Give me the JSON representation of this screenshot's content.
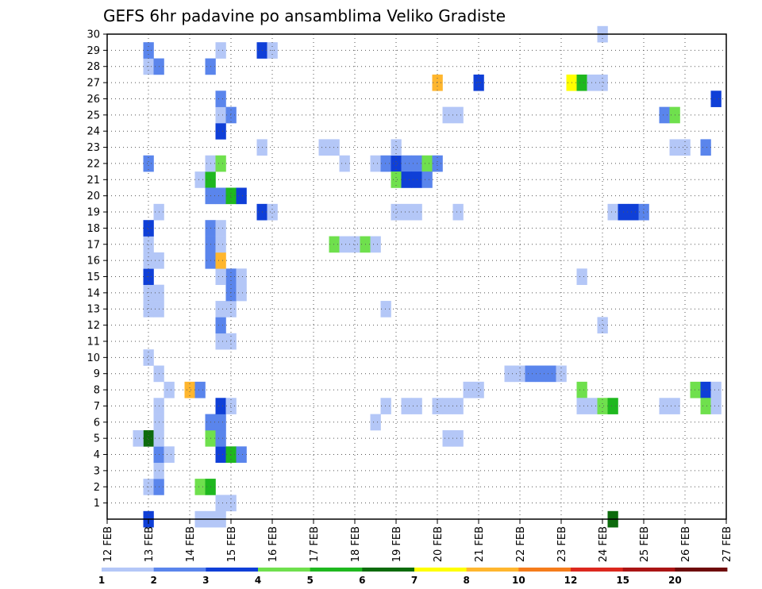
{
  "chart_data": {
    "type": "heatmap",
    "title": "GEFS 6hr padavine po ansamblima Veliko Gradiste",
    "xlabel": "",
    "ylabel": "",
    "x_ticks": [
      "12 FEB",
      "13 FEB",
      "14 FEB",
      "15 FEB",
      "16 FEB",
      "17 FEB",
      "18 FEB",
      "19 FEB",
      "20 FEB",
      "21 FEB",
      "22 FEB",
      "23 FEB",
      "24 FEB",
      "25 FEB",
      "26 FEB",
      "27 FEB"
    ],
    "y_ticks": [
      "1",
      "2",
      "3",
      "4",
      "5",
      "6",
      "7",
      "8",
      "9",
      "10",
      "11",
      "12",
      "13",
      "14",
      "15",
      "16",
      "17",
      "18",
      "19",
      "20",
      "21",
      "22",
      "23",
      "24",
      "25",
      "26",
      "27",
      "28",
      "29",
      "30"
    ],
    "xlim": [
      12,
      27
    ],
    "ylim": [
      0,
      30
    ],
    "step_days": 0.25,
    "grid": true,
    "colorbar": {
      "labels": [
        "1",
        "2",
        "3",
        "4",
        "5",
        "6",
        "7",
        "8",
        "10",
        "12",
        "15",
        "20"
      ],
      "colors": [
        "#b4c7f7",
        "#5a85ec",
        "#0f3fd7",
        "#6fe04d",
        "#1fb81f",
        "#0d6b0d",
        "#ffff00",
        "#ffb62e",
        "#f57c1b",
        "#dc281e",
        "#aa1414",
        "#6e0b0b"
      ]
    },
    "cells": [
      [
        13.0,
        0,
        3
      ],
      [
        13.0,
        2,
        1
      ],
      [
        13.0,
        5,
        6
      ],
      [
        13.0,
        10,
        1
      ],
      [
        13.0,
        13,
        1
      ],
      [
        13.0,
        14,
        1
      ],
      [
        13.0,
        15,
        3
      ],
      [
        13.0,
        16,
        1
      ],
      [
        13.0,
        17,
        1
      ],
      [
        13.0,
        18,
        3
      ],
      [
        13.0,
        22,
        2
      ],
      [
        13.0,
        28,
        1
      ],
      [
        13.0,
        29,
        2
      ],
      [
        12.75,
        5,
        1
      ],
      [
        13.25,
        2,
        2
      ],
      [
        13.25,
        3,
        1
      ],
      [
        13.25,
        4,
        2
      ],
      [
        13.25,
        5,
        1
      ],
      [
        13.25,
        6,
        1
      ],
      [
        13.25,
        7,
        1
      ],
      [
        13.25,
        9,
        1
      ],
      [
        13.25,
        13,
        1
      ],
      [
        13.25,
        14,
        1
      ],
      [
        13.25,
        16,
        1
      ],
      [
        13.25,
        19,
        1
      ],
      [
        13.25,
        28,
        2
      ],
      [
        13.5,
        4,
        1
      ],
      [
        13.5,
        8,
        1
      ],
      [
        14.0,
        8,
        8
      ],
      [
        14.25,
        8,
        2
      ],
      [
        14.25,
        2,
        4
      ],
      [
        14.5,
        2,
        5
      ],
      [
        14.25,
        21,
        1
      ],
      [
        14.5,
        21,
        5
      ],
      [
        14.5,
        5,
        4
      ],
      [
        14.5,
        6,
        2
      ],
      [
        14.5,
        16,
        2
      ],
      [
        14.5,
        17,
        2
      ],
      [
        14.5,
        18,
        2
      ],
      [
        14.5,
        20,
        2
      ],
      [
        14.5,
        22,
        1
      ],
      [
        14.5,
        28,
        2
      ],
      [
        14.25,
        0,
        1
      ],
      [
        14.5,
        0,
        1
      ],
      [
        14.75,
        0,
        1
      ],
      [
        14.75,
        1,
        1
      ],
      [
        15.0,
        1,
        1
      ],
      [
        14.75,
        4,
        3
      ],
      [
        15.0,
        4,
        5
      ],
      [
        15.25,
        4,
        2
      ],
      [
        14.75,
        5,
        2
      ],
      [
        14.75,
        6,
        2
      ],
      [
        14.75,
        7,
        3
      ],
      [
        15.0,
        7,
        1
      ],
      [
        14.75,
        11,
        1
      ],
      [
        15.0,
        11,
        1
      ],
      [
        14.75,
        12,
        2
      ],
      [
        14.75,
        13,
        1
      ],
      [
        15.0,
        13,
        1
      ],
      [
        15.0,
        14,
        2
      ],
      [
        15.25,
        14,
        1
      ],
      [
        15.0,
        15,
        2
      ],
      [
        15.25,
        15,
        1
      ],
      [
        14.75,
        15,
        1
      ],
      [
        14.75,
        16,
        8
      ],
      [
        14.75,
        17,
        1
      ],
      [
        14.75,
        18,
        1
      ],
      [
        14.75,
        20,
        2
      ],
      [
        15.0,
        20,
        5
      ],
      [
        15.25,
        20,
        3
      ],
      [
        14.75,
        22,
        4
      ],
      [
        14.75,
        24,
        3
      ],
      [
        14.75,
        25,
        1
      ],
      [
        15.0,
        25,
        2
      ],
      [
        14.75,
        26,
        2
      ],
      [
        14.75,
        29,
        1
      ],
      [
        15.75,
        19,
        3
      ],
      [
        16.0,
        19,
        1
      ],
      [
        15.75,
        23,
        1
      ],
      [
        15.75,
        29,
        3
      ],
      [
        16.0,
        29,
        1
      ],
      [
        17.25,
        23,
        1
      ],
      [
        17.5,
        23,
        1
      ],
      [
        17.75,
        22,
        1
      ],
      [
        17.5,
        17,
        4
      ],
      [
        17.75,
        17,
        1
      ],
      [
        18.0,
        17,
        1
      ],
      [
        18.25,
        17,
        4
      ],
      [
        18.5,
        17,
        1
      ],
      [
        18.5,
        22,
        1
      ],
      [
        18.75,
        22,
        2
      ],
      [
        19.0,
        22,
        3
      ],
      [
        19.25,
        22,
        2
      ],
      [
        19.5,
        22,
        2
      ],
      [
        19.75,
        22,
        4
      ],
      [
        20.0,
        22,
        2
      ],
      [
        19.0,
        21,
        4
      ],
      [
        19.25,
        21,
        3
      ],
      [
        19.5,
        21,
        3
      ],
      [
        19.75,
        21,
        2
      ],
      [
        19.0,
        23,
        1
      ],
      [
        19.0,
        19,
        1
      ],
      [
        19.25,
        19,
        1
      ],
      [
        19.5,
        19,
        1
      ],
      [
        18.75,
        13,
        1
      ],
      [
        18.75,
        7,
        1
      ],
      [
        18.5,
        6,
        1
      ],
      [
        19.25,
        7,
        1
      ],
      [
        19.5,
        7,
        1
      ],
      [
        20.0,
        7,
        1
      ],
      [
        20.25,
        7,
        1
      ],
      [
        20.5,
        7,
        1
      ],
      [
        20.75,
        8,
        1
      ],
      [
        21.0,
        8,
        1
      ],
      [
        20.25,
        5,
        1
      ],
      [
        20.5,
        5,
        1
      ],
      [
        20.25,
        25,
        1
      ],
      [
        20.5,
        25,
        1
      ],
      [
        20.5,
        19,
        1
      ],
      [
        20.0,
        27,
        8
      ],
      [
        21.0,
        27,
        3
      ],
      [
        21.75,
        9,
        1
      ],
      [
        22.0,
        9,
        1
      ],
      [
        22.25,
        9,
        2
      ],
      [
        22.5,
        9,
        2
      ],
      [
        22.75,
        9,
        2
      ],
      [
        23.0,
        9,
        1
      ],
      [
        23.25,
        27,
        7
      ],
      [
        23.5,
        27,
        5
      ],
      [
        23.75,
        27,
        1
      ],
      [
        24.0,
        27,
        1
      ],
      [
        23.5,
        8,
        4
      ],
      [
        23.5,
        7,
        1
      ],
      [
        23.75,
        7,
        1
      ],
      [
        24.0,
        7,
        4
      ],
      [
        24.25,
        7,
        5
      ],
      [
        23.5,
        15,
        1
      ],
      [
        24.0,
        12,
        1
      ],
      [
        24.0,
        30,
        1
      ],
      [
        24.25,
        19,
        1
      ],
      [
        24.5,
        19,
        3
      ],
      [
        24.75,
        19,
        3
      ],
      [
        25.0,
        19,
        2
      ],
      [
        24.25,
        0,
        6
      ],
      [
        25.5,
        25,
        2
      ],
      [
        25.75,
        25,
        4
      ],
      [
        25.75,
        23,
        1
      ],
      [
        26.0,
        23,
        1
      ],
      [
        26.5,
        23,
        2
      ],
      [
        25.5,
        7,
        1
      ],
      [
        25.75,
        7,
        1
      ],
      [
        26.25,
        8,
        4
      ],
      [
        26.5,
        8,
        3
      ],
      [
        26.75,
        8,
        1
      ],
      [
        26.5,
        7,
        4
      ],
      [
        26.75,
        7,
        1
      ],
      [
        26.75,
        26,
        3
      ]
    ]
  }
}
